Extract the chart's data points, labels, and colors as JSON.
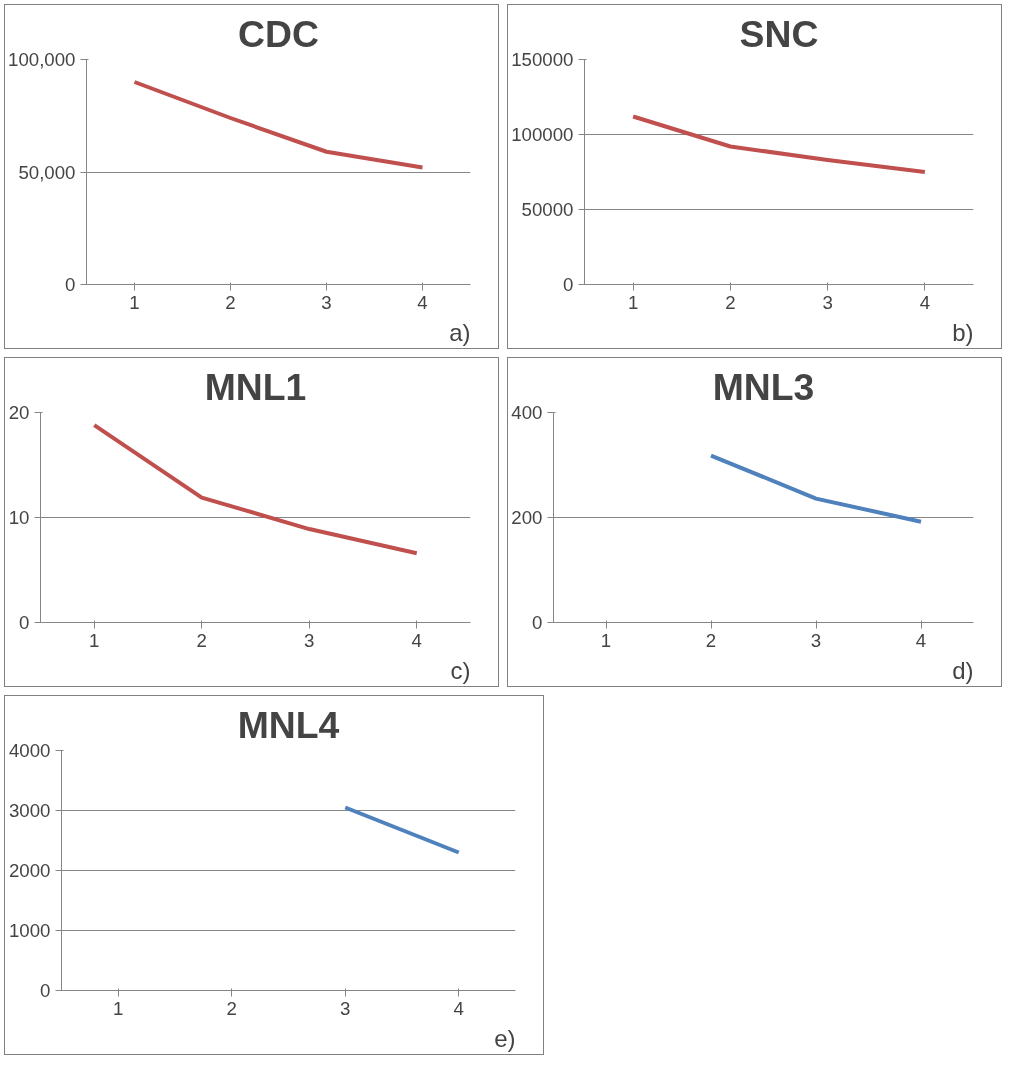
{
  "chart_data": [
    {
      "type": "line",
      "title": "CDC",
      "categories": [
        "1",
        "2",
        "3",
        "4"
      ],
      "series": [
        {
          "color": "#c0504d",
          "values": [
            90000,
            74000,
            59000,
            52000
          ]
        }
      ],
      "ylim": [
        0,
        100000
      ],
      "yticks": [
        0,
        {
          "value": 50000,
          "label": "50,000"
        },
        {
          "value": 100000,
          "label": "100,000"
        }
      ],
      "grid": "y",
      "annotations": [
        "a)"
      ]
    },
    {
      "type": "line",
      "title": "SNC",
      "categories": [
        "1",
        "2",
        "3",
        "4"
      ],
      "series": [
        {
          "color": "#c0504d",
          "values": [
            112000,
            92000,
            83000,
            75000
          ]
        }
      ],
      "ylim": [
        0,
        150000
      ],
      "yticks": [
        0,
        50000,
        100000,
        150000
      ],
      "grid": "y",
      "annotations": [
        "b)"
      ]
    },
    {
      "type": "line",
      "title": "MNL1",
      "categories": [
        "1",
        "2",
        "3",
        "4"
      ],
      "series": [
        {
          "color": "#c0504d",
          "values": [
            18.8,
            11.9,
            8.9,
            6.6
          ]
        }
      ],
      "ylim": [
        0,
        20
      ],
      "yticks": [
        0,
        10,
        20
      ],
      "grid": "y",
      "annotations": [
        "c)"
      ]
    },
    {
      "type": "line",
      "title": "MNL3",
      "categories": [
        "1",
        "2",
        "3",
        "4"
      ],
      "series": [
        {
          "color": "#4f81bd",
          "values": [
            null,
            318,
            236,
            192
          ]
        }
      ],
      "ylim": [
        0,
        400
      ],
      "yticks": [
        0,
        200,
        400
      ],
      "grid": "y",
      "annotations": [
        "d)"
      ]
    },
    {
      "type": "line",
      "title": "MNL4",
      "categories": [
        "1",
        "2",
        "3",
        "4"
      ],
      "series": [
        {
          "color": "#4f81bd",
          "values": [
            null,
            null,
            3050,
            2300
          ]
        }
      ],
      "ylim": [
        0,
        4000
      ],
      "yticks": [
        0,
        1000,
        2000,
        3000,
        4000
      ],
      "grid": "y",
      "annotations": [
        "e)"
      ]
    }
  ]
}
